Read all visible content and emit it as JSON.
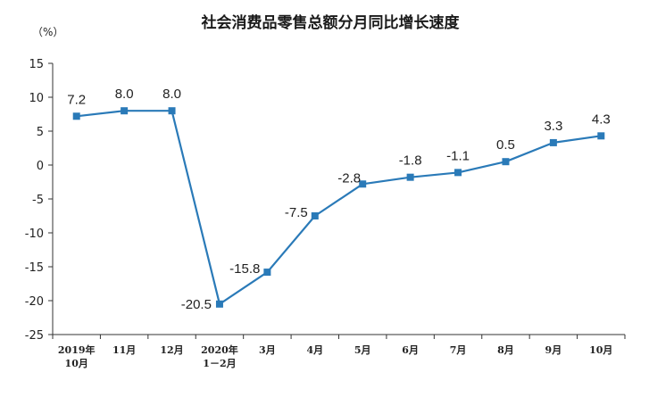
{
  "chart_data": {
    "type": "line",
    "title": "社会消费品零售总额分月同比增长速度",
    "ylabel": "（%）",
    "xlabel": "",
    "ylim": [
      -25,
      15
    ],
    "yticks": [
      15,
      10,
      5,
      0,
      -5,
      -10,
      -15,
      -20,
      -25
    ],
    "grid": false,
    "categories": [
      [
        "2019年",
        "10月"
      ],
      [
        "11月"
      ],
      [
        "12月"
      ],
      [
        "2020年",
        "1－2月"
      ],
      [
        "3月"
      ],
      [
        "4月"
      ],
      [
        "5月"
      ],
      [
        "6月"
      ],
      [
        "7月"
      ],
      [
        "8月"
      ],
      [
        "9月"
      ],
      [
        "10月"
      ]
    ],
    "series": [
      {
        "values": [
          7.2,
          8.0,
          8.0,
          -20.5,
          -15.8,
          -7.5,
          -2.8,
          -1.8,
          -1.1,
          0.5,
          3.3,
          4.3
        ],
        "labels": [
          "7.2",
          "8.0",
          "8.0",
          "-20.5",
          "-15.8",
          "-7.5",
          "-2.8",
          "-1.8",
          "-1.1",
          "0.5",
          "3.3",
          "4.3"
        ],
        "color": "#2a7ab8"
      }
    ]
  }
}
